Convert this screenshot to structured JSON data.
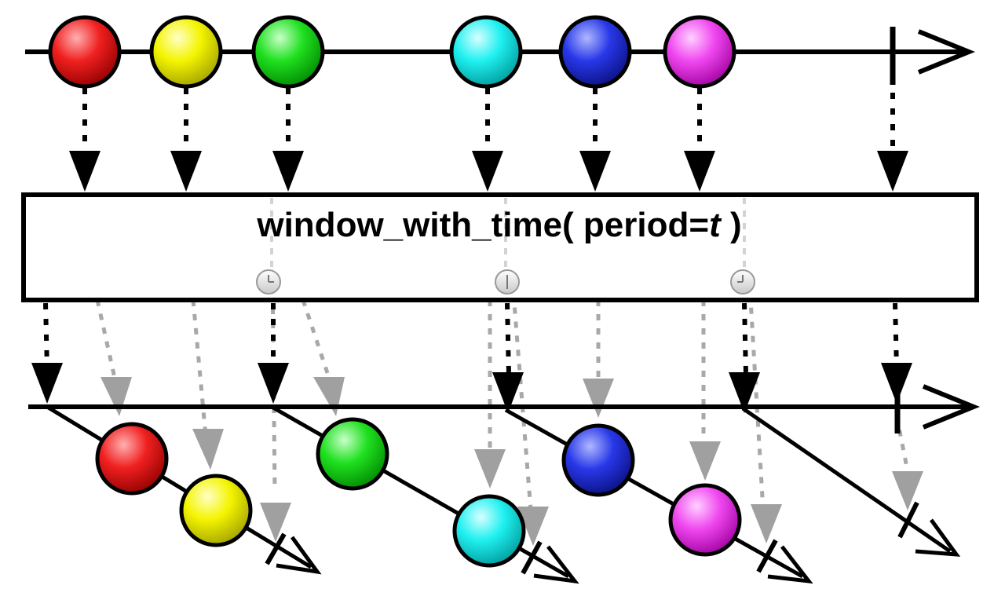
{
  "operator": {
    "name_prefix": "window_with_time( period=",
    "param": "t",
    "name_suffix": " )"
  },
  "source_items": [
    {
      "color": "red"
    },
    {
      "color": "yellow"
    },
    {
      "color": "green"
    },
    {
      "color": "cyan"
    },
    {
      "color": "blue"
    },
    {
      "color": "magenta"
    }
  ],
  "windows": [
    {
      "items": [
        "red",
        "yellow"
      ]
    },
    {
      "items": [
        "green",
        "cyan"
      ]
    },
    {
      "items": [
        "blue",
        "magenta"
      ]
    },
    {
      "items": []
    }
  ],
  "timer_icon": "clock-icon",
  "colors": {
    "red": "#e01010",
    "yellow": "#f0f000",
    "green": "#18e018",
    "cyan": "#10f0f0",
    "blue": "#2030e0",
    "magenta": "#f040f0",
    "line": "#000000",
    "dashed_gray": "#a8a8a8"
  }
}
